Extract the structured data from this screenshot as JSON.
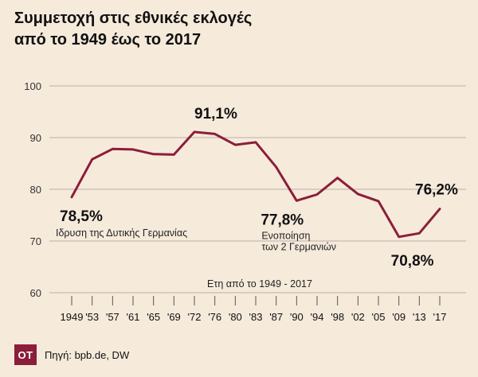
{
  "title_line1": "Συμμετοχή στις εθνικές εκλογές",
  "title_line2": "από το 1949 έως το 2017",
  "logo_text": "OT",
  "source": "Πηγή: bpb.de, DW",
  "colors": {
    "line": "#8b1e3a",
    "background": "#f6eadb",
    "grid": "#b8b0a6",
    "logo": "#8b1e3a"
  },
  "chart_data": {
    "type": "line",
    "xlabel": "Ετη από το 1949 - 2017",
    "ylabel": "",
    "ylim": [
      60,
      100
    ],
    "yticks": [
      60,
      70,
      80,
      90,
      100
    ],
    "grid": true,
    "categories": [
      "1949",
      "'53",
      "'57",
      "'61",
      "'65",
      "'69",
      "'72",
      "'76",
      "'80",
      "'83",
      "'87",
      "'90",
      "'94",
      "'98",
      "'02",
      "'05",
      "'09",
      "'13",
      "'17"
    ],
    "series": [
      {
        "values": [
          78.5,
          85.8,
          87.8,
          87.7,
          86.8,
          86.7,
          91.1,
          90.7,
          88.6,
          89.1,
          84.3,
          77.8,
          79.0,
          82.2,
          79.1,
          77.7,
          70.8,
          71.5,
          76.2
        ]
      }
    ],
    "annotations": [
      {
        "index": 0,
        "value_label": "78,5%",
        "note": [
          "Ιδρυση της Δυτικής Γερμανίας"
        ]
      },
      {
        "index": 6,
        "value_label": "91,1%",
        "note": []
      },
      {
        "index": 11,
        "value_label": "77,8%",
        "note": [
          "Ενοποίηση",
          "των 2 Γερμανιών"
        ]
      },
      {
        "index": 16,
        "value_label": "70,8%",
        "note": []
      },
      {
        "index": 18,
        "value_label": "76,2%",
        "note": []
      }
    ]
  }
}
